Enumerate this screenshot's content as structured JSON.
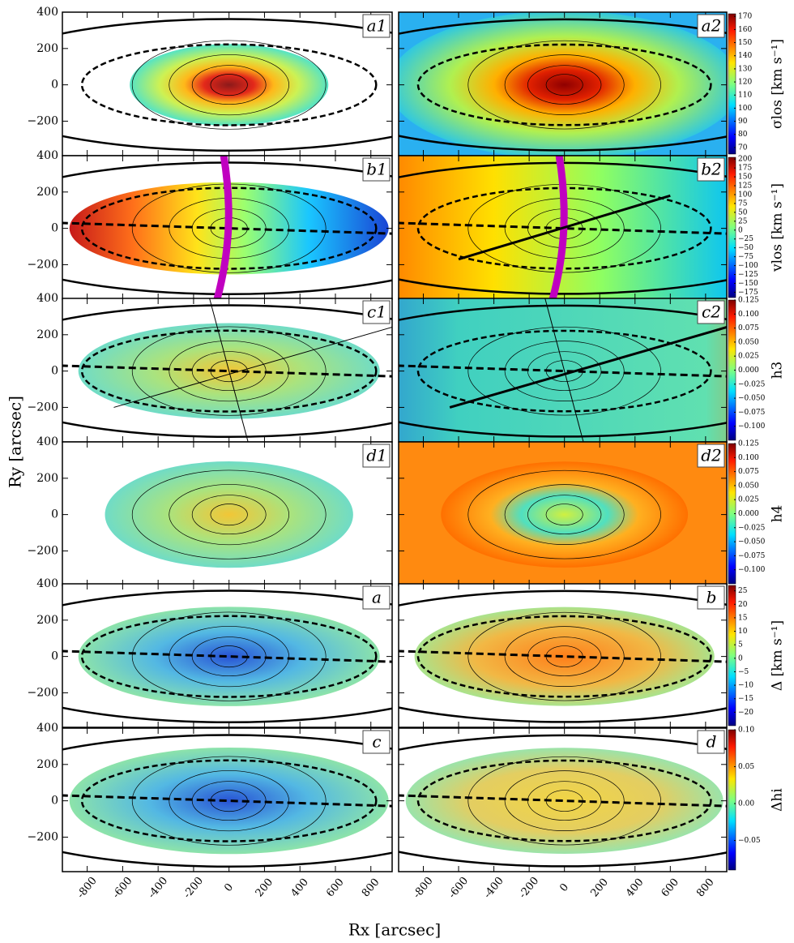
{
  "axes": {
    "xlabel": "Rx [arcsec]",
    "ylabel": "Ry [arcsec]",
    "xlim": [
      -940,
      920
    ],
    "ylim": [
      -390,
      400
    ],
    "xticks": [
      -800,
      -600,
      -400,
      -200,
      0,
      200,
      400,
      600,
      800
    ],
    "yticks": [
      {
        "value": -200,
        "label": "−200"
      },
      0,
      200,
      400
    ]
  },
  "panels": [
    "a1",
    "a2",
    "b1",
    "b2",
    "c1",
    "c2",
    "d1",
    "d2",
    "a",
    "b",
    "c",
    "d"
  ],
  "colorbars": [
    {
      "label": "σlos [km s⁻¹]",
      "lim": [
        65,
        172
      ],
      "ticks": [
        70,
        80,
        90,
        100,
        110,
        120,
        130,
        140,
        150,
        160,
        170
      ]
    },
    {
      "label": "vlos [km s⁻¹]",
      "lim": [
        -190,
        205
      ],
      "ticks": [
        200,
        175,
        150,
        125,
        100,
        75,
        50,
        25,
        0,
        {
          "value": -25,
          "label": "−25"
        },
        {
          "value": -50,
          "label": "−50"
        },
        {
          "value": -75,
          "label": "−75"
        },
        {
          "value": -100,
          "label": "−100"
        },
        {
          "value": -125,
          "label": "−125"
        },
        {
          "value": -150,
          "label": "−150"
        },
        {
          "value": -175,
          "label": "−175"
        }
      ]
    },
    {
      "label": "h3",
      "lim": [
        -0.125,
        0.125
      ],
      "ticks": [
        0.125,
        {
          "value": 0.1,
          "label": "0.100"
        },
        0.075,
        {
          "value": 0.05,
          "label": "0.050"
        },
        0.025,
        {
          "value": 0,
          "label": "0.000"
        },
        {
          "value": -0.025,
          "label": "−0.025"
        },
        {
          "value": -0.05,
          "label": "−0.050"
        },
        {
          "value": -0.075,
          "label": "−0.075"
        },
        {
          "value": -0.1,
          "label": "−0.100"
        }
      ]
    },
    {
      "label": "h4",
      "lim": [
        -0.125,
        0.125
      ],
      "ticks": [
        0.125,
        {
          "value": 0.1,
          "label": "0.100"
        },
        0.075,
        {
          "value": 0.05,
          "label": "0.050"
        },
        0.025,
        {
          "value": 0,
          "label": "0.000"
        },
        {
          "value": -0.025,
          "label": "−0.025"
        },
        {
          "value": -0.05,
          "label": "−0.050"
        },
        {
          "value": -0.075,
          "label": "−0.075"
        },
        {
          "value": -0.1,
          "label": "−0.100"
        }
      ]
    },
    {
      "label": "Δ [km s⁻¹]",
      "lim": [
        -25,
        27
      ],
      "ticks": [
        25,
        20,
        15,
        10,
        5,
        0,
        {
          "value": -5,
          "label": "−5"
        },
        {
          "value": -10,
          "label": "−10"
        },
        {
          "value": -15,
          "label": "−15"
        },
        {
          "value": -20,
          "label": "−20"
        }
      ]
    },
    {
      "label": "Δhi",
      "lim": [
        -0.09,
        0.1
      ],
      "ticks": [
        {
          "value": 0.1,
          "label": "0.10"
        },
        {
          "value": 0.05,
          "label": "0.05"
        },
        {
          "value": 0,
          "label": "0.00"
        },
        {
          "value": -0.05,
          "label": "−0.05"
        }
      ]
    }
  ]
}
